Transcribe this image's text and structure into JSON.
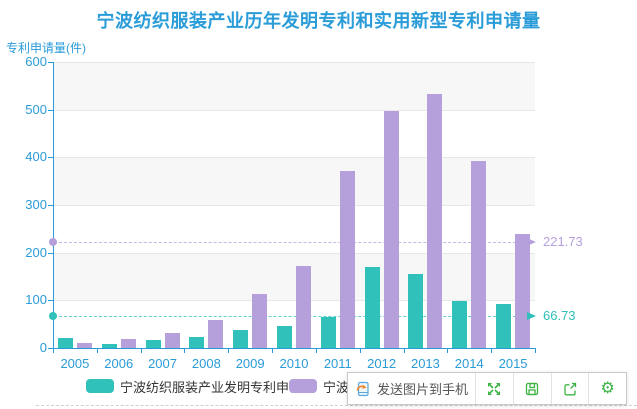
{
  "title": "宁波纺织服装产业历年发明专利和实用新型专利申请量",
  "y_axis_name": "专利申请量(件)",
  "chart_data": {
    "type": "bar",
    "title": "宁波纺织服装产业历年发明专利和实用新型专利申请量",
    "ylabel": "专利申请量(件)",
    "categories": [
      "2005",
      "2006",
      "2007",
      "2008",
      "2009",
      "2010",
      "2011",
      "2012",
      "2013",
      "2014",
      "2015"
    ],
    "series": [
      {
        "name": "宁波纺织服装产业发明专利申请量",
        "color": "#30c2ba",
        "values": [
          21,
          8,
          17,
          24,
          38,
          46,
          64,
          170,
          156,
          98,
          92
        ],
        "average_line": {
          "value": 66.73,
          "label": "66.73"
        }
      },
      {
        "name": "宁波纺织服装产业实用新型专利申请量",
        "color": "#b5a0dc",
        "values": [
          11,
          18,
          31,
          58,
          114,
          173,
          372,
          497,
          533,
          392,
          240
        ],
        "average_line": {
          "value": 221.73,
          "label": "221.73"
        }
      }
    ],
    "ylim": [
      0,
      600
    ],
    "y_ticks": [
      0,
      100,
      200,
      300,
      400,
      500,
      600
    ],
    "grid": true,
    "split_area_alternating": true,
    "legend_position": "bottom"
  },
  "toolbar": {
    "send_to_phone_label": "发送图片到手机",
    "icons": [
      "send-to-phone-icon",
      "fullscreen-icon",
      "save-image-icon",
      "share-icon",
      "settings-gear-icon"
    ]
  },
  "colors": {
    "title_text": "#2a9cd8",
    "axis": "#2a9cd8",
    "series_invention": "#30c2ba",
    "series_utility": "#b5a0dc",
    "grid_line": "#e7e7e7",
    "split_band": "#f7f7f7",
    "toolbar_icon_green": "#3cb344",
    "legend_text": "#333333"
  }
}
